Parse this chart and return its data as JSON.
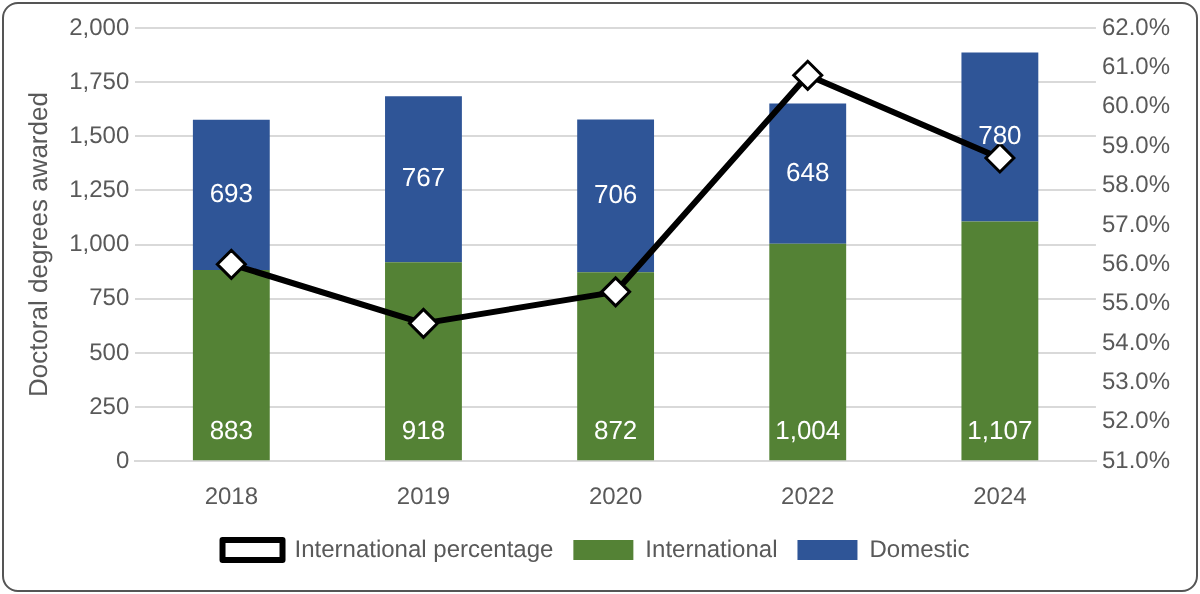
{
  "chart_data": {
    "type": "bar",
    "stacked": true,
    "ylabel": "Doctoral degrees awarded",
    "categories": [
      "2018",
      "2019",
      "2020",
      "2022",
      "2024"
    ],
    "series": [
      {
        "name": "International",
        "color": "#548235",
        "values": [
          883,
          918,
          872,
          1004,
          1107
        ],
        "value_labels": [
          "883",
          "918",
          "872",
          "1,004",
          "1,107"
        ]
      },
      {
        "name": "Domestic",
        "color": "#2f5597",
        "values": [
          693,
          767,
          706,
          648,
          780
        ],
        "value_labels": [
          "693",
          "767",
          "706",
          "648",
          "780"
        ]
      },
      {
        "name": "International percentage",
        "type": "line",
        "axis": "y2",
        "color": "#000000",
        "marker": "diamond",
        "values": [
          56.0,
          54.5,
          55.3,
          60.8,
          58.7
        ]
      }
    ],
    "ylim": [
      0,
      2000
    ],
    "yticks": [
      {
        "value": 0,
        "label": "0"
      },
      {
        "value": 250,
        "label": "250"
      },
      {
        "value": 500,
        "label": "500"
      },
      {
        "value": 750,
        "label": "750"
      },
      {
        "value": 1000,
        "label": "1,000"
      },
      {
        "value": 1250,
        "label": "1,250"
      },
      {
        "value": 1500,
        "label": "1,500"
      },
      {
        "value": 1750,
        "label": "1,750"
      },
      {
        "value": 2000,
        "label": "2,000"
      }
    ],
    "y2lim": [
      51,
      62
    ],
    "y2ticks": [
      {
        "value": 51,
        "label": "51.0%"
      },
      {
        "value": 52,
        "label": "52.0%"
      },
      {
        "value": 53,
        "label": "53.0%"
      },
      {
        "value": 54,
        "label": "54.0%"
      },
      {
        "value": 55,
        "label": "55.0%"
      },
      {
        "value": 56,
        "label": "56.0%"
      },
      {
        "value": 57,
        "label": "57.0%"
      },
      {
        "value": 58,
        "label": "58.0%"
      },
      {
        "value": 59,
        "label": "59.0%"
      },
      {
        "value": 60,
        "label": "60.0%"
      },
      {
        "value": 61,
        "label": "61.0%"
      },
      {
        "value": 62,
        "label": "62.0%"
      }
    ],
    "grid": "y",
    "legend": "bottom"
  }
}
